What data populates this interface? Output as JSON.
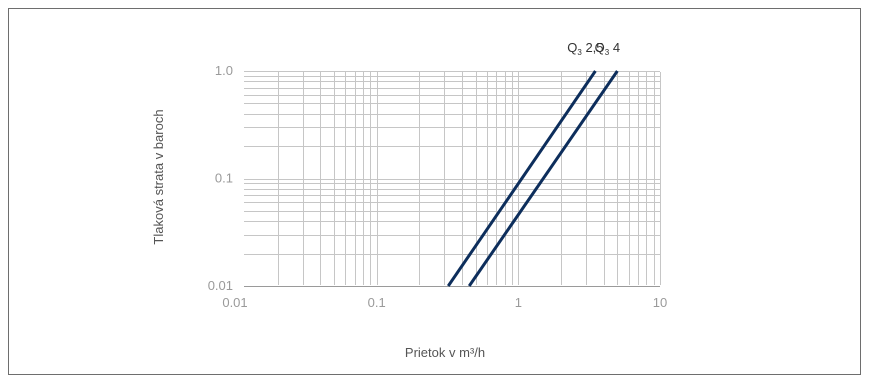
{
  "chart_data": {
    "type": "line",
    "title": "",
    "xlabel": "Prietok v m³/h",
    "ylabel": "Tlaková strata v baroch",
    "xscale": "log",
    "yscale": "log",
    "xlim": [
      0.01,
      10
    ],
    "ylim": [
      0.01,
      1.0
    ],
    "grid": true,
    "x_ticks": [
      "0.01",
      "0.1",
      "1",
      "10"
    ],
    "y_ticks": [
      "0.01",
      "0.1",
      "1.0"
    ],
    "series": [
      {
        "name": "Q3 2,5",
        "label_main": "Q",
        "label_sub": "3",
        "label_rest": " 2,5",
        "color": "#0d2e5c",
        "points": [
          [
            0.32,
            0.01
          ],
          [
            3.5,
            1.0
          ]
        ]
      },
      {
        "name": "Q3 4",
        "label_main": "Q",
        "label_sub": "3",
        "label_rest": " 4",
        "color": "#0d2e5c",
        "points": [
          [
            0.45,
            0.01
          ],
          [
            5.0,
            1.0
          ]
        ]
      }
    ]
  }
}
